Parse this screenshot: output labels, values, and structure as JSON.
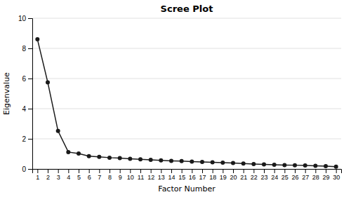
{
  "chart_data": {
    "type": "line",
    "title": "Scree Plot",
    "xlabel": "Factor Number",
    "ylabel": "Eigenvalue",
    "x": [
      1,
      2,
      3,
      4,
      5,
      6,
      7,
      8,
      9,
      10,
      11,
      12,
      13,
      14,
      15,
      16,
      17,
      18,
      19,
      20,
      21,
      22,
      23,
      24,
      25,
      26,
      27,
      28,
      29,
      30
    ],
    "values": [
      8.6,
      5.75,
      2.52,
      1.12,
      1.02,
      0.85,
      0.8,
      0.75,
      0.72,
      0.68,
      0.64,
      0.6,
      0.57,
      0.54,
      0.52,
      0.49,
      0.46,
      0.44,
      0.42,
      0.39,
      0.36,
      0.33,
      0.3,
      0.28,
      0.26,
      0.25,
      0.23,
      0.21,
      0.19,
      0.15
    ],
    "color": "#1a1a1a",
    "marker": "circle",
    "xlim": [
      0.5,
      30.5
    ],
    "xticks": [
      1,
      2,
      3,
      4,
      5,
      6,
      7,
      8,
      9,
      10,
      11,
      12,
      13,
      14,
      15,
      16,
      17,
      18,
      19,
      20,
      21,
      22,
      23,
      24,
      25,
      26,
      27,
      28,
      29,
      30
    ],
    "ylim": [
      0,
      10
    ],
    "yticks": [
      0,
      2,
      4,
      6,
      8,
      10
    ],
    "grid": "y"
  }
}
